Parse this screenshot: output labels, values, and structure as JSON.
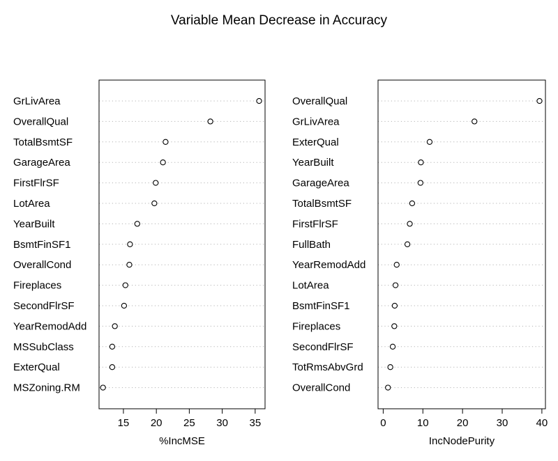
{
  "title": "Variable Mean Decrease in Accuracy",
  "chart_data": [
    {
      "type": "scatter",
      "subtype": "dotchart",
      "xlabel": "%IncMSE",
      "xlim": [
        11.3,
        36.5
      ],
      "xticks": [
        15,
        20,
        25,
        30,
        35
      ],
      "grid": "dotted horizontal",
      "categories": [
        "GrLivArea",
        "OverallQual",
        "TotalBsmtSF",
        "GarageArea",
        "FirstFlrSF",
        "LotArea",
        "YearBuilt",
        "BsmtFinSF1",
        "OverallCond",
        "Fireplaces",
        "SecondFlrSF",
        "YearRemodAdd",
        "MSSubClass",
        "ExterQual",
        "MSZoning.RM"
      ],
      "values": [
        35.6,
        28.2,
        21.4,
        21.0,
        19.9,
        19.7,
        17.1,
        16.0,
        15.9,
        15.3,
        15.1,
        13.7,
        13.3,
        13.3,
        11.9
      ]
    },
    {
      "type": "scatter",
      "subtype": "dotchart",
      "xlabel": "IncNodePurity",
      "xlim": [
        -1.3,
        40.9
      ],
      "xticks": [
        0,
        10,
        20,
        30,
        40
      ],
      "grid": "dotted horizontal",
      "categories": [
        "OverallQual",
        "GrLivArea",
        "ExterQual",
        "YearBuilt",
        "GarageArea",
        "TotalBsmtSF",
        "FirstFlrSF",
        "FullBath",
        "YearRemodAdd",
        "LotArea",
        "BsmtFinSF1",
        "Fireplaces",
        "SecondFlrSF",
        "TotRmsAbvGrd",
        "OverallCond"
      ],
      "values": [
        39.4,
        23.0,
        11.7,
        9.5,
        9.4,
        7.3,
        6.7,
        6.1,
        3.4,
        3.1,
        2.9,
        2.8,
        2.4,
        1.8,
        1.2
      ]
    }
  ]
}
